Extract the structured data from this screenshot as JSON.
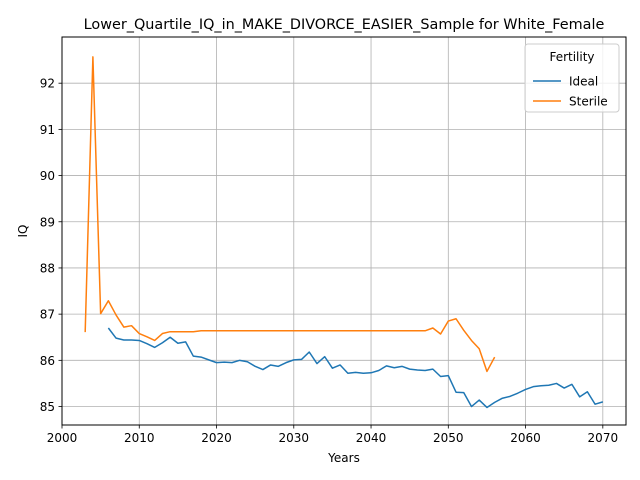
{
  "chart_data": {
    "type": "line",
    "title": "Lower_Quartile_IQ_in_MAKE_DIVORCE_EASIER_Sample for White_Female",
    "xlabel": "Years",
    "ylabel": "IQ",
    "xlim": [
      2000,
      2073
    ],
    "ylim": [
      84.6,
      93.0
    ],
    "xticks": [
      2000,
      2010,
      2020,
      2030,
      2040,
      2050,
      2060,
      2070
    ],
    "yticks": [
      85,
      86,
      87,
      88,
      89,
      90,
      91,
      92
    ],
    "grid": true,
    "legend": {
      "title": "Fertility",
      "placement": "top-right"
    },
    "series": [
      {
        "name": "Ideal",
        "color": "#1f77b4",
        "x": [
          2006,
          2007,
          2008,
          2009,
          2010,
          2011,
          2012,
          2013,
          2014,
          2015,
          2016,
          2017,
          2018,
          2019,
          2020,
          2021,
          2022,
          2023,
          2024,
          2025,
          2026,
          2027,
          2028,
          2029,
          2030,
          2031,
          2032,
          2033,
          2034,
          2035,
          2036,
          2037,
          2038,
          2039,
          2040,
          2041,
          2042,
          2043,
          2044,
          2045,
          2046,
          2047,
          2048,
          2049,
          2050,
          2051,
          2052,
          2053,
          2054,
          2055,
          2056,
          2057,
          2058,
          2059,
          2060,
          2061,
          2062,
          2063,
          2064,
          2065,
          2066,
          2067,
          2068,
          2069,
          2070
        ],
        "values": [
          86.7,
          86.48,
          86.44,
          86.44,
          86.43,
          86.36,
          86.28,
          86.38,
          86.5,
          86.37,
          86.4,
          86.09,
          86.07,
          86.01,
          85.95,
          85.96,
          85.95,
          86.0,
          85.97,
          85.87,
          85.8,
          85.9,
          85.87,
          85.95,
          86.01,
          86.02,
          86.18,
          85.93,
          86.08,
          85.83,
          85.9,
          85.72,
          85.74,
          85.72,
          85.73,
          85.78,
          85.88,
          85.84,
          85.87,
          85.81,
          85.79,
          85.78,
          85.81,
          85.65,
          85.67,
          85.31,
          85.3,
          85.0,
          85.14,
          84.98,
          85.09,
          85.18,
          85.22,
          85.29,
          85.37,
          85.43,
          85.45,
          85.46,
          85.5,
          85.4,
          85.48,
          85.21,
          85.32,
          85.05,
          85.1
        ]
      },
      {
        "name": "Sterile",
        "color": "#ff7f0e",
        "x": [
          2003,
          2004,
          2005,
          2006,
          2007,
          2008,
          2009,
          2010,
          2011,
          2012,
          2013,
          2014,
          2015,
          2016,
          2017,
          2018,
          2019,
          2020,
          2021,
          2022,
          2023,
          2024,
          2025,
          2026,
          2027,
          2028,
          2029,
          2030,
          2031,
          2032,
          2033,
          2034,
          2035,
          2036,
          2037,
          2038,
          2039,
          2040,
          2041,
          2042,
          2043,
          2044,
          2045,
          2046,
          2047,
          2048,
          2049,
          2050,
          2051,
          2052,
          2053,
          2054,
          2055,
          2056
        ],
        "values": [
          86.61,
          92.57,
          87.01,
          87.29,
          86.98,
          86.72,
          86.75,
          86.58,
          86.51,
          86.43,
          86.58,
          86.62,
          86.62,
          86.62,
          86.62,
          86.64,
          86.64,
          86.64,
          86.64,
          86.64,
          86.64,
          86.64,
          86.64,
          86.64,
          86.64,
          86.64,
          86.64,
          86.64,
          86.64,
          86.64,
          86.64,
          86.64,
          86.64,
          86.64,
          86.64,
          86.64,
          86.64,
          86.64,
          86.64,
          86.64,
          86.64,
          86.64,
          86.64,
          86.64,
          86.64,
          86.7,
          86.57,
          86.85,
          86.9,
          86.65,
          86.43,
          86.25,
          85.76,
          86.07
        ]
      }
    ]
  }
}
